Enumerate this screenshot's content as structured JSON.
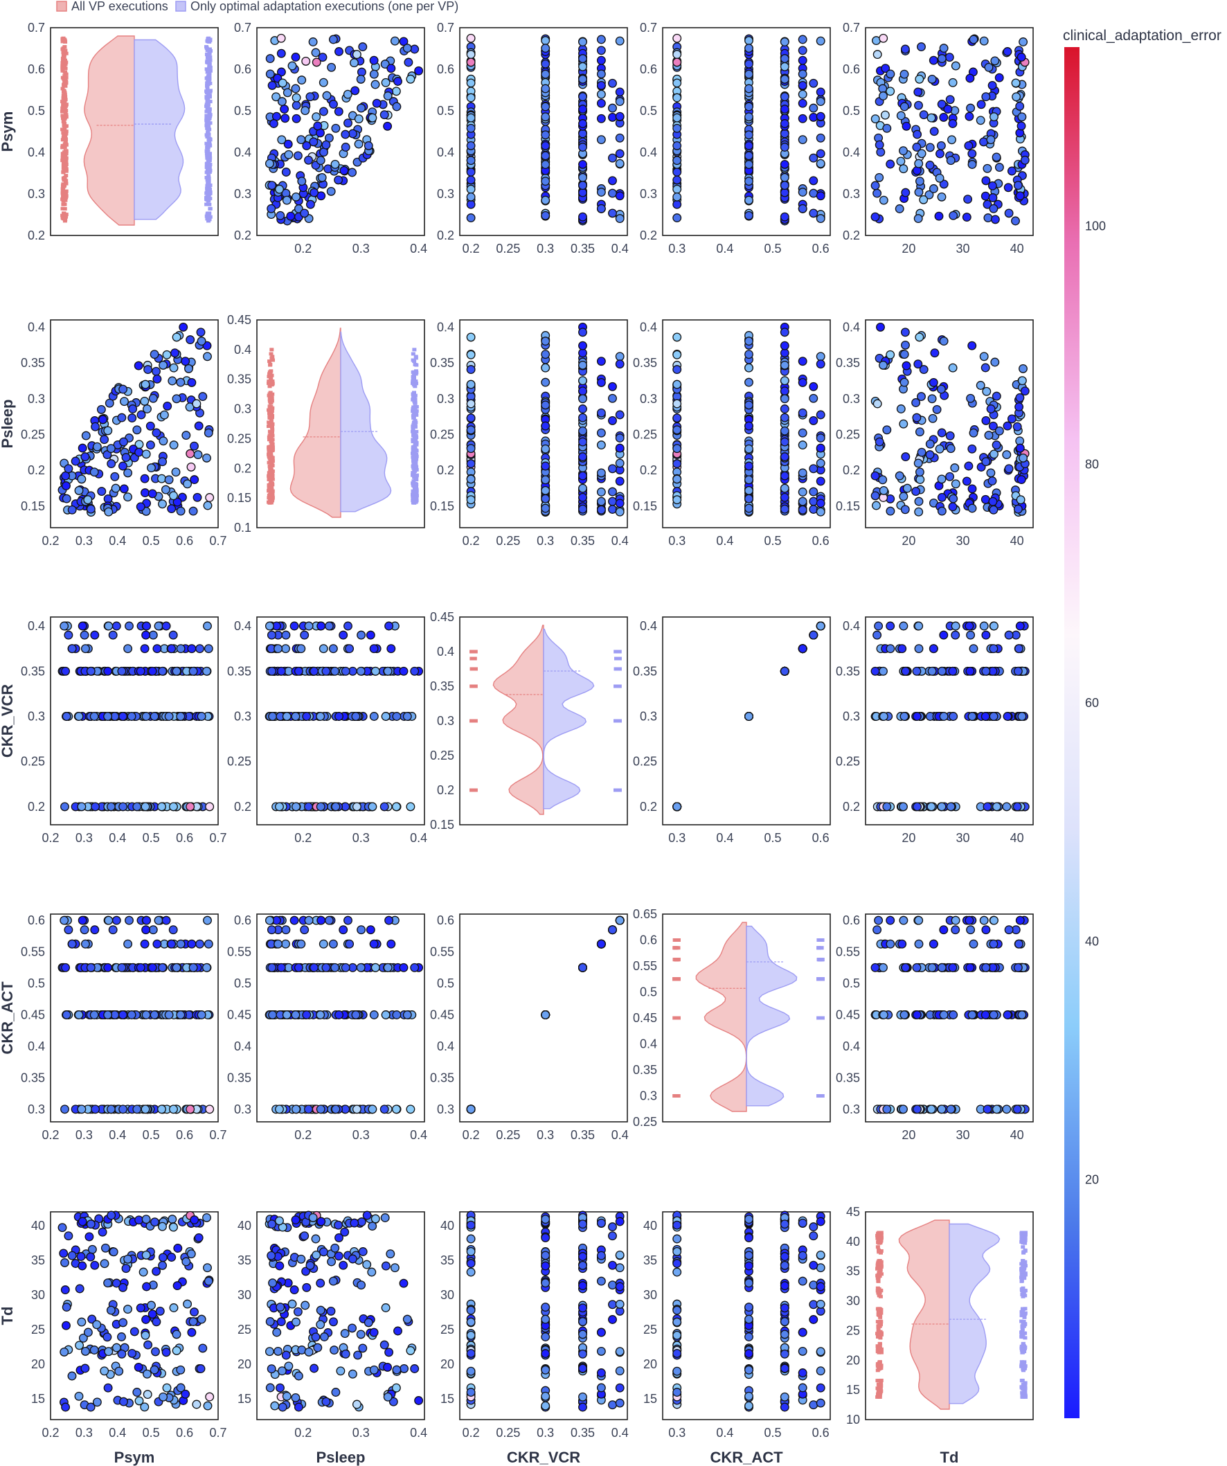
{
  "chart_data": {
    "type": "scatter",
    "layout_kind": "scatter-matrix with split violin diagonal",
    "variables": [
      "Psym",
      "Psleep",
      "CKR_VCR",
      "CKR_ACT",
      "Td"
    ],
    "ranges": {
      "Psym": [
        0.2,
        0.7
      ],
      "Psleep": [
        0.1,
        0.45
      ],
      "CKR_VCR": [
        0.15,
        0.45
      ],
      "CKR_ACT": [
        0.25,
        0.65
      ],
      "Td": [
        10,
        45
      ]
    },
    "ticks": {
      "Psym": [
        "0.2",
        "0.3",
        "0.4",
        "0.5",
        "0.6",
        "0.7"
      ],
      "Psleep": [
        "0.1",
        "0.15",
        "0.2",
        "0.25",
        "0.3",
        "0.35",
        "0.4",
        "0.45"
      ],
      "CKR_VCR": [
        "0.15",
        "0.2",
        "0.25",
        "0.3",
        "0.35",
        "0.4",
        "0.45"
      ],
      "CKR_ACT": [
        "0.25",
        "0.3",
        "0.35",
        "0.4",
        "0.45",
        "0.5",
        "0.55",
        "0.6",
        "0.65"
      ],
      "Td": [
        "10",
        "15",
        "20",
        "25",
        "30",
        "35",
        "40",
        "45"
      ]
    },
    "discrete_levels": {
      "CKR_VCR": [
        0.2,
        0.3,
        0.35,
        0.375,
        0.39,
        0.4
      ],
      "CKR_ACT": [
        0.3,
        0.45,
        0.525,
        0.5625,
        0.585,
        0.6
      ]
    },
    "violin_medians": {
      "Psym": {
        "all": 0.465,
        "optimal": 0.468
      },
      "Psleep": {
        "all": 0.253,
        "optimal": 0.262
      },
      "CKR_VCR": {
        "all": 0.338,
        "optimal": 0.372
      },
      "CKR_ACT": {
        "all": 0.507,
        "optimal": 0.558
      },
      "Td": {
        "all": 26.1,
        "optimal": 26.9
      }
    },
    "series": [
      {
        "name": "All VP executions",
        "color": "#e58080"
      },
      {
        "name": "Only optimal adaptation executions (one per VP)",
        "color": "#9d9cf3"
      }
    ],
    "colorscale": {
      "title": "clinical_adaptation_error",
      "range": [
        0,
        115
      ],
      "tick_values": [
        20,
        40,
        60,
        80,
        100
      ],
      "stops": [
        "#1a1aff",
        "#4d7bea",
        "#8ccdfa",
        "#dde2fb",
        "#fdf7fb",
        "#f5c2f2",
        "#e96fb3",
        "#d9132a"
      ]
    },
    "legend_position": "top-left"
  }
}
